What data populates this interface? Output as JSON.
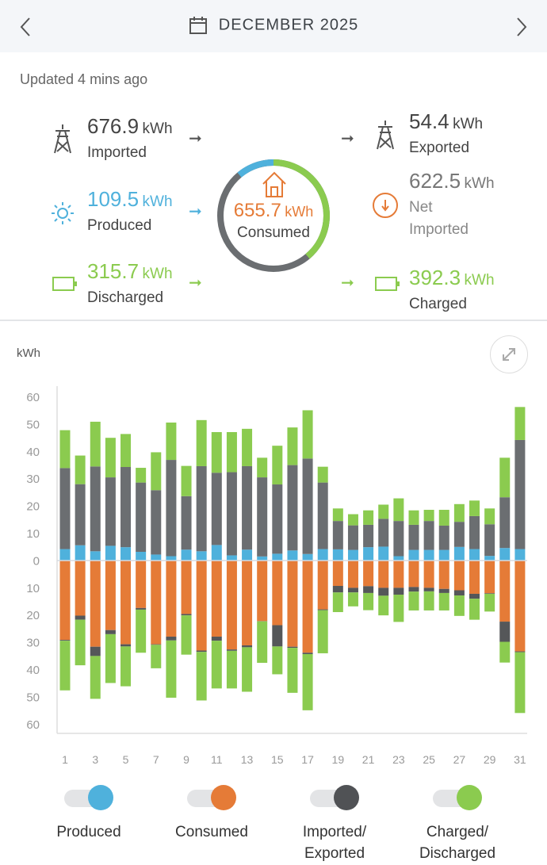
{
  "header": {
    "title": "DECEMBER 2025",
    "prev_icon": "chevron-left",
    "next_icon": "chevron-right",
    "calendar_icon": "calendar"
  },
  "summary": {
    "updated": "Updated 4 mins ago",
    "imported": {
      "value": "676.9",
      "unit": "kWh",
      "label": "Imported"
    },
    "exported": {
      "value": "54.4",
      "unit": "kWh",
      "label": "Exported"
    },
    "produced": {
      "value": "109.5",
      "unit": "kWh",
      "label": "Produced"
    },
    "consumed": {
      "value": "655.7",
      "unit": "kWh",
      "label": "Consumed"
    },
    "net": {
      "value": "622.5",
      "unit": "kWh",
      "label1": "Net",
      "label2": "Imported"
    },
    "discharged": {
      "value": "315.7",
      "unit": "kWh",
      "label": "Discharged"
    },
    "charged": {
      "value": "392.3",
      "unit": "kWh",
      "label": "Charged"
    }
  },
  "colors": {
    "produced": "#4fb1dc",
    "consumed": "#e57b37",
    "grid": "#6b6e71",
    "battery": "#8bcb4f",
    "text": "#444444"
  },
  "chart_data": {
    "type": "bar",
    "ylabel": "kWh",
    "ylim": [
      -60,
      60
    ],
    "y_ticks": [
      "60",
      "50",
      "40",
      "30",
      "20",
      "10",
      "0",
      "10",
      "20",
      "30",
      "40",
      "50",
      "60"
    ],
    "x_tick_labels": [
      "1",
      "3",
      "5",
      "7",
      "9",
      "11",
      "13",
      "15",
      "17",
      "19",
      "21",
      "23",
      "25",
      "27",
      "29",
      "31"
    ],
    "categories": [
      1,
      2,
      3,
      4,
      5,
      6,
      7,
      8,
      9,
      10,
      11,
      12,
      13,
      14,
      15,
      16,
      17,
      18,
      19,
      20,
      21,
      22,
      23,
      24,
      25,
      26,
      27,
      28,
      29,
      30,
      31
    ],
    "series": [
      {
        "name": "Produced",
        "direction": "up",
        "color": "#4fb1dc",
        "values": [
          4.2,
          5.6,
          3.4,
          5.4,
          4.9,
          3.2,
          2.2,
          1.6,
          4.0,
          3.4,
          5.7,
          1.9,
          4.0,
          1.5,
          2.5,
          3.7,
          2.4,
          4.2,
          4.1,
          3.9,
          4.9,
          5.1,
          1.6,
          3.9,
          3.9,
          3.9,
          5.0,
          4.2,
          1.7,
          4.6,
          4.2
        ]
      },
      {
        "name": "Imported",
        "direction": "up",
        "color": "#6b6e71",
        "values": [
          29.7,
          22.4,
          31.1,
          25.1,
          29.4,
          25.4,
          23.6,
          35.3,
          19.6,
          31.2,
          26.5,
          30.5,
          30.6,
          29.0,
          25.4,
          31.3,
          35.0,
          24.4,
          10.4,
          9.0,
          8.2,
          10.2,
          12.9,
          9.2,
          10.6,
          8.9,
          9.2,
          12.1,
          11.6,
          18.6,
          40.0
        ]
      },
      {
        "name": "Discharged",
        "direction": "up",
        "color": "#8bcb4f",
        "values": [
          13.9,
          10.5,
          16.4,
          14.5,
          12.1,
          5.4,
          13.9,
          13.7,
          11.1,
          16.9,
          14.9,
          14.7,
          13.7,
          7.2,
          14.2,
          13.8,
          17.7,
          5.8,
          4.6,
          4.1,
          5.3,
          5.2,
          8.3,
          5.3,
          4.1,
          5.8,
          6.5,
          5.7,
          5.8,
          14.5,
          12.1
        ]
      },
      {
        "name": "Consumed",
        "direction": "down",
        "color": "#e57b37",
        "values": [
          29.1,
          20.2,
          31.6,
          25.5,
          30.7,
          17.4,
          30.7,
          27.9,
          19.6,
          33.0,
          27.9,
          32.6,
          31.1,
          22.2,
          23.7,
          31.6,
          33.8,
          17.9,
          9.3,
          10.0,
          9.4,
          10.0,
          10.0,
          9.7,
          10.0,
          10.4,
          10.9,
          12.2,
          12.0,
          22.4,
          33.3
        ]
      },
      {
        "name": "Exported",
        "direction": "down",
        "color": "#555759",
        "values": [
          0.3,
          1.5,
          3.4,
          1.5,
          0.8,
          0.6,
          0.2,
          1.4,
          0.5,
          0.5,
          1.5,
          0.5,
          0.7,
          0.1,
          7.8,
          0.4,
          0.5,
          0.3,
          2.4,
          1.7,
          2.5,
          2.9,
          2.5,
          1.7,
          1.3,
          1.5,
          1.9,
          1.8,
          0.2,
          7.4,
          0.3
        ]
      },
      {
        "name": "Charged",
        "direction": "down",
        "color": "#8bcb4f",
        "values": [
          18.2,
          16.7,
          15.7,
          17.9,
          14.6,
          15.8,
          8.6,
          21.0,
          14.4,
          17.8,
          17.5,
          13.8,
          16.3,
          15.2,
          10.2,
          16.5,
          20.6,
          15.8,
          7.2,
          5.1,
          6.3,
          7.2,
          10.0,
          6.9,
          7.0,
          6.4,
          7.5,
          7.7,
          6.5,
          7.6,
          22.3
        ]
      }
    ]
  },
  "legend": [
    {
      "label": "Produced",
      "color": "#4fb1dc",
      "on": true
    },
    {
      "label": "Consumed",
      "color": "#e57b37",
      "on": true
    },
    {
      "label1": "Imported/",
      "label2": "Exported",
      "color": "#505255",
      "on": true
    },
    {
      "label1": "Charged/",
      "label2": "Discharged",
      "color": "#8bcb4f",
      "on": true
    }
  ]
}
